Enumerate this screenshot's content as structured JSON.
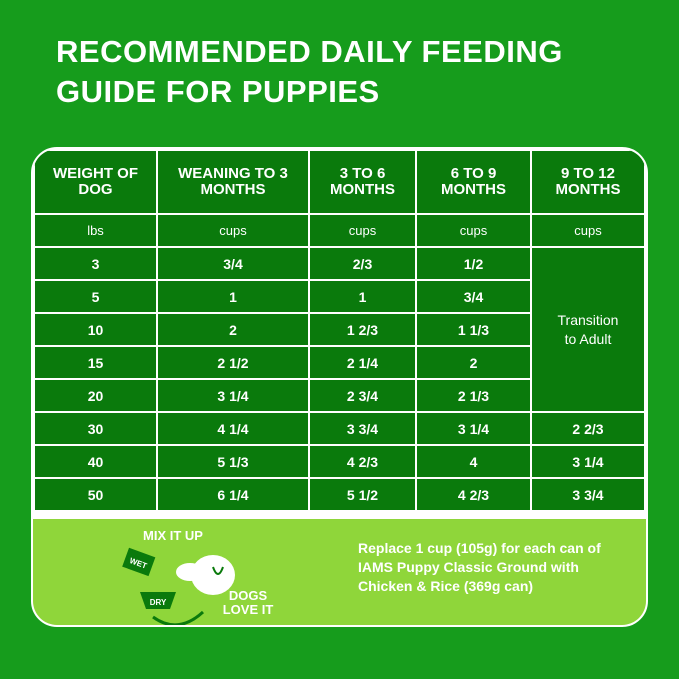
{
  "title": "RECOMMENDED DAILY FEEDING GUIDE FOR PUPPIES",
  "table": {
    "headers": [
      "WEIGHT OF DOG",
      "WEANING TO 3 MONTHS",
      "3 TO 6 MONTHS",
      "6 TO 9 MONTHS",
      "9 TO 12 MONTHS"
    ],
    "units": [
      "lbs",
      "cups",
      "cups",
      "cups",
      "cups"
    ],
    "rows": [
      [
        "3",
        "3/4",
        "2/3",
        "1/2"
      ],
      [
        "5",
        "1",
        "1",
        "3/4"
      ],
      [
        "10",
        "2",
        "1 2/3",
        "1 1/3"
      ],
      [
        "15",
        "2 1/2",
        "2 1/4",
        "2"
      ],
      [
        "20",
        "3 1/4",
        "2 3/4",
        "2 1/3"
      ],
      [
        "30",
        "4 1/4",
        "3 3/4",
        "3 1/4",
        "2 2/3"
      ],
      [
        "40",
        "5 1/3",
        "4 2/3",
        "4",
        "3 1/4"
      ],
      [
        "50",
        "6 1/4",
        "5 1/2",
        "4 2/3",
        "3 3/4"
      ]
    ],
    "transition": "Transition to Adult"
  },
  "promo": {
    "mix": "MIX IT UP",
    "wet": "WET",
    "dry": "DRY",
    "love": "DOGS LOVE IT",
    "message": "Replace 1 cup (105g) for each can of IAMS Puppy Classic Ground with Chicken & Rice (369g can)"
  },
  "colors": {
    "background": "#169c1c",
    "table": "#0a7a0c",
    "promo": "#8fd63a"
  }
}
